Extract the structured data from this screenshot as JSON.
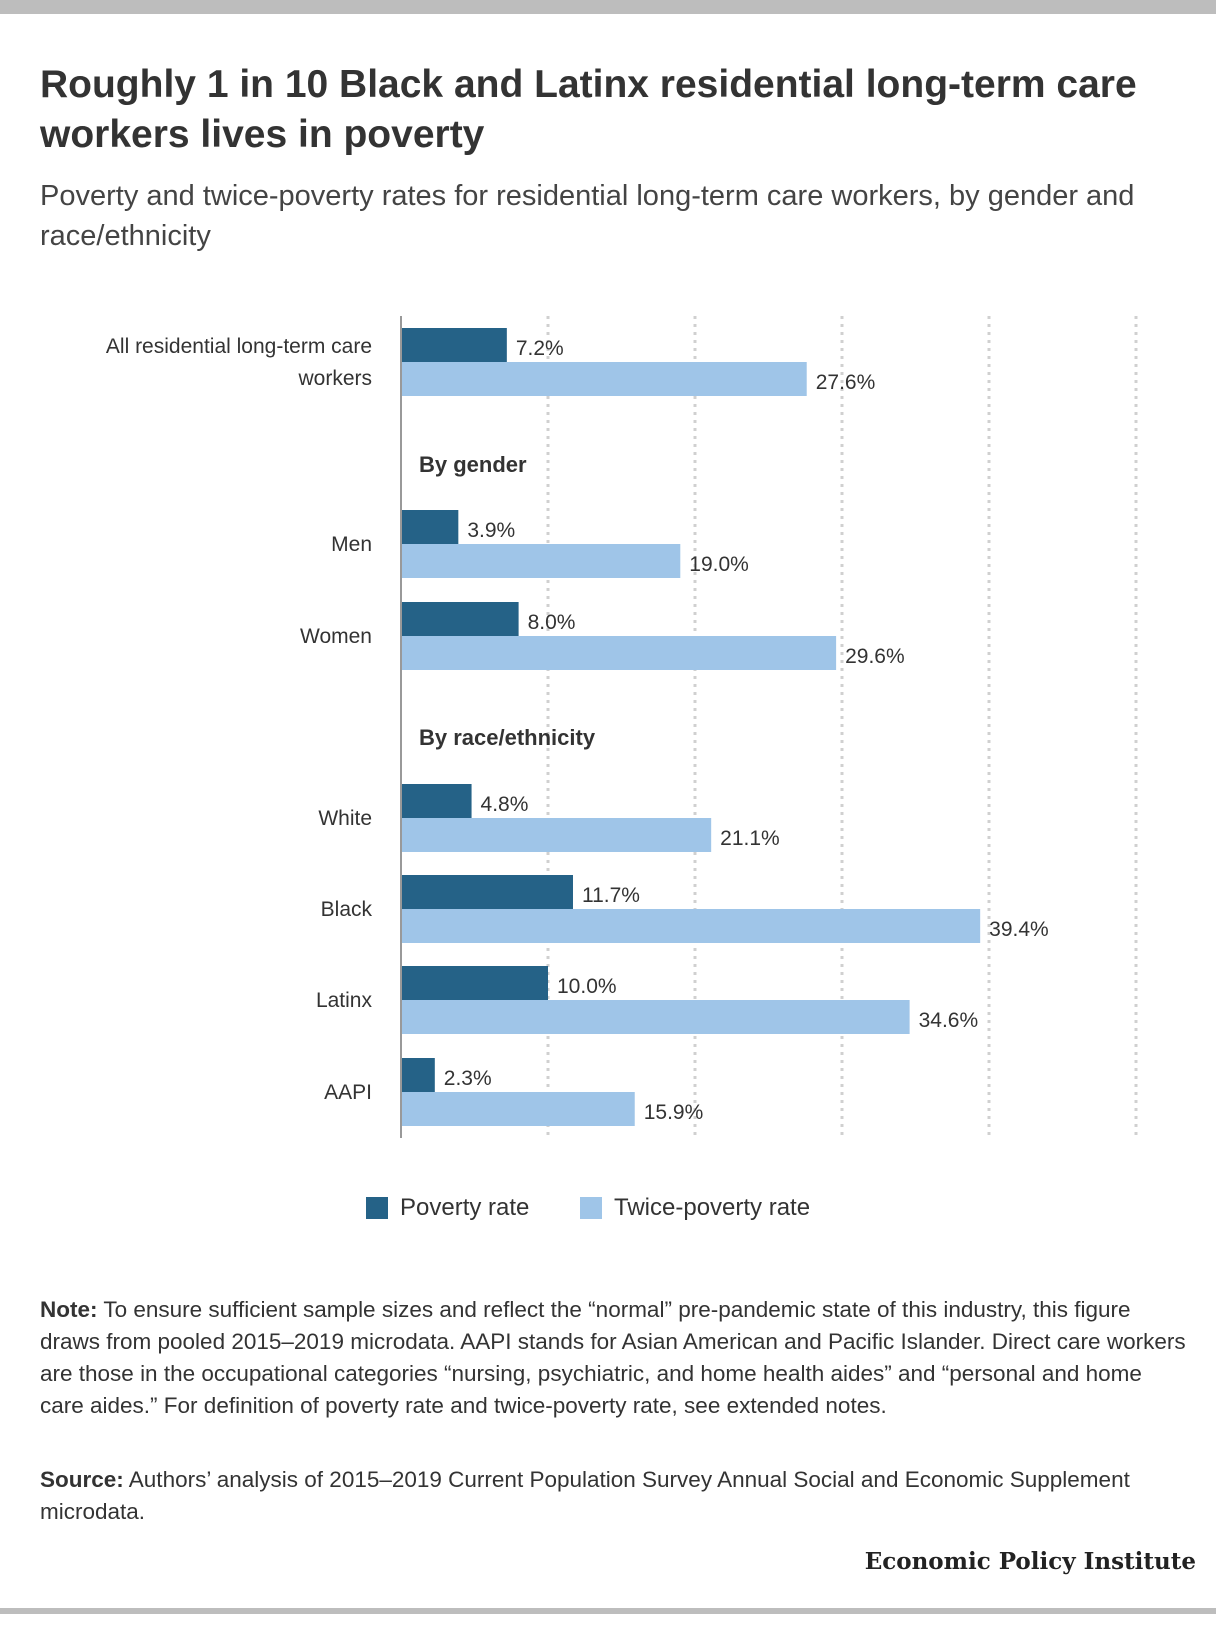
{
  "title": "Roughly 1 in 10 Black and Latinx residential long-term care workers lives in poverty",
  "subtitle": "Poverty and twice-poverty rates for residential long-term care workers, by gender and race/ethnicity",
  "legend": {
    "poverty": "Poverty rate",
    "twice": "Twice-poverty rate"
  },
  "colors": {
    "poverty": "#256287",
    "twice": "#9fc5e8",
    "axis": "#999999",
    "grid": "#d0d0d0"
  },
  "chart_data": {
    "type": "bar",
    "orientation": "horizontal",
    "xlim": [
      0,
      50
    ],
    "grid": true,
    "legend_position": "bottom",
    "value_suffix": "%",
    "series": [
      {
        "name": "Poverty rate",
        "key": "poverty"
      },
      {
        "name": "Twice-poverty rate",
        "key": "twice"
      }
    ],
    "rows": [
      {
        "kind": "bar",
        "label": "All residential long-term care workers",
        "poverty": 7.2,
        "twice": 27.6
      },
      {
        "kind": "header",
        "label": "By gender"
      },
      {
        "kind": "bar",
        "label": "Men",
        "poverty": 3.9,
        "twice": 19.0
      },
      {
        "kind": "bar",
        "label": "Women",
        "poverty": 8.0,
        "twice": 29.6
      },
      {
        "kind": "header",
        "label": "By race/ethnicity"
      },
      {
        "kind": "bar",
        "label": "White",
        "poverty": 4.8,
        "twice": 21.1
      },
      {
        "kind": "bar",
        "label": "Black",
        "poverty": 11.7,
        "twice": 39.4
      },
      {
        "kind": "bar",
        "label": "Latinx",
        "poverty": 10.0,
        "twice": 34.6
      },
      {
        "kind": "bar",
        "label": "AAPI",
        "poverty": 2.3,
        "twice": 15.9
      }
    ]
  },
  "note": {
    "label": "Note:",
    "text": " To ensure sufficient sample sizes and reflect the “normal” pre-pandemic state of this industry, this figure draws from pooled 2015–2019 microdata. AAPI stands for Asian American and Pacific Islander. Direct care workers are those in the occupational categories “nursing, psychiatric, and home health aides” and “personal and home care aides.” For definition of poverty rate and twice-poverty rate, see extended notes."
  },
  "source": {
    "label": "Source:",
    "text": " Authors’ analysis of 2015–2019 Current Population Survey Annual Social and Economic Supplement microdata."
  },
  "brand": "Economic Policy Institute"
}
